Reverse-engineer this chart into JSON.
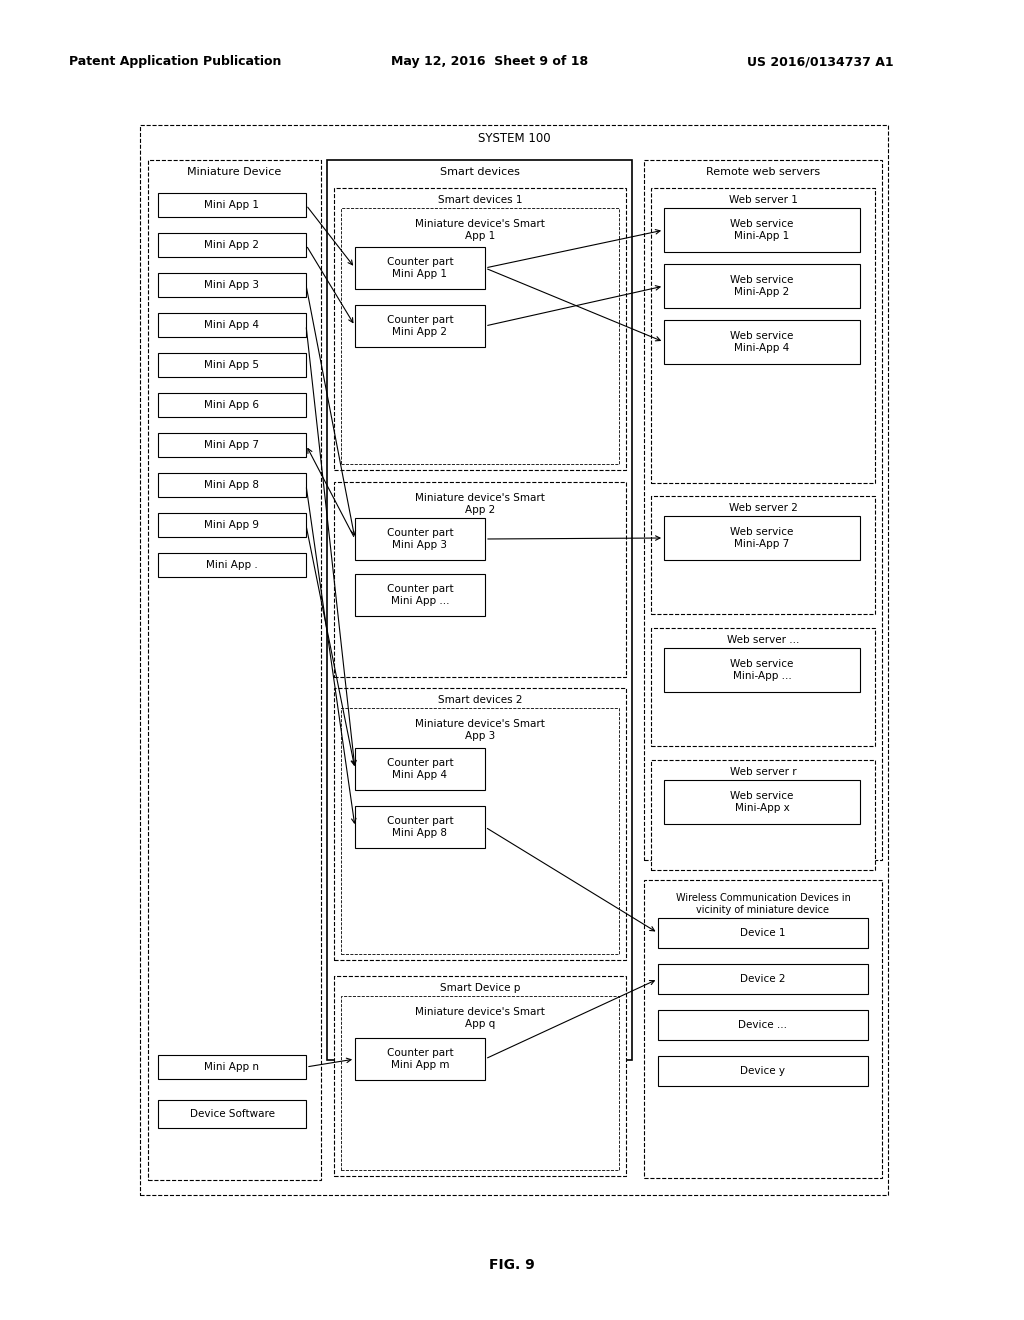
{
  "bg_color": "#ffffff",
  "header_left": "Patent Application Publication",
  "header_mid": "May 12, 2016  Sheet 9 of 18",
  "header_right": "US 2016/0134737 A1",
  "fig_label": "FIG. 9",
  "system_label": "SYSTEM 100",
  "miniature_device_label": "Miniature Device",
  "smart_devices_label": "Smart devices",
  "remote_web_servers_label": "Remote web servers",
  "wireless_devices_label": "Wireless Communication Devices in\nvicinity of miniature device",
  "mini_apps": [
    "Mini App 1",
    "Mini App 2",
    "Mini App 3",
    "Mini App 4",
    "Mini App 5",
    "Mini App 6",
    "Mini App 7",
    "Mini App 8",
    "Mini App 9",
    "Mini App ."
  ],
  "mini_app_n": "Mini App n",
  "device_software": "Device Software",
  "smart_devices_1_label": "Smart devices 1",
  "smart_app_1_label": "Miniature device's Smart\nApp 1",
  "counter_1_1": "Counter part\nMini App 1",
  "counter_1_2": "Counter part\nMini App 2",
  "smart_app_2_label": "Miniature device's Smart\nApp 2",
  "counter_2_1": "Counter part\nMini App 3",
  "counter_2_2": "Counter part\nMini App ...",
  "smart_devices_2_label": "Smart devices 2",
  "smart_app_3_label": "Miniature device's Smart\nApp 3",
  "counter_3_1": "Counter part\nMini App 4",
  "counter_3_2": "Counter part\nMini App 8",
  "smart_device_p_label": "Smart Device p",
  "smart_app_q_label": "Miniature device's Smart\nApp q",
  "counter_p_1": "Counter part\nMini App m",
  "web_server_1_label": "Web server 1",
  "web_service_1_1": "Web service\nMini-App 1",
  "web_service_1_2": "Web service\nMini-App 2",
  "web_service_1_3": "Web service\nMini-App 4",
  "web_server_2_label": "Web server 2",
  "web_service_2_1": "Web service\nMini-App 7",
  "web_server_3_label": "Web server ...",
  "web_service_3_1": "Web service\nMini-App ...",
  "web_server_r_label": "Web server r",
  "web_service_r_1": "Web service\nMini-App x",
  "devices": [
    "Device 1",
    "Device 2",
    "Device ...",
    "Device y"
  ]
}
